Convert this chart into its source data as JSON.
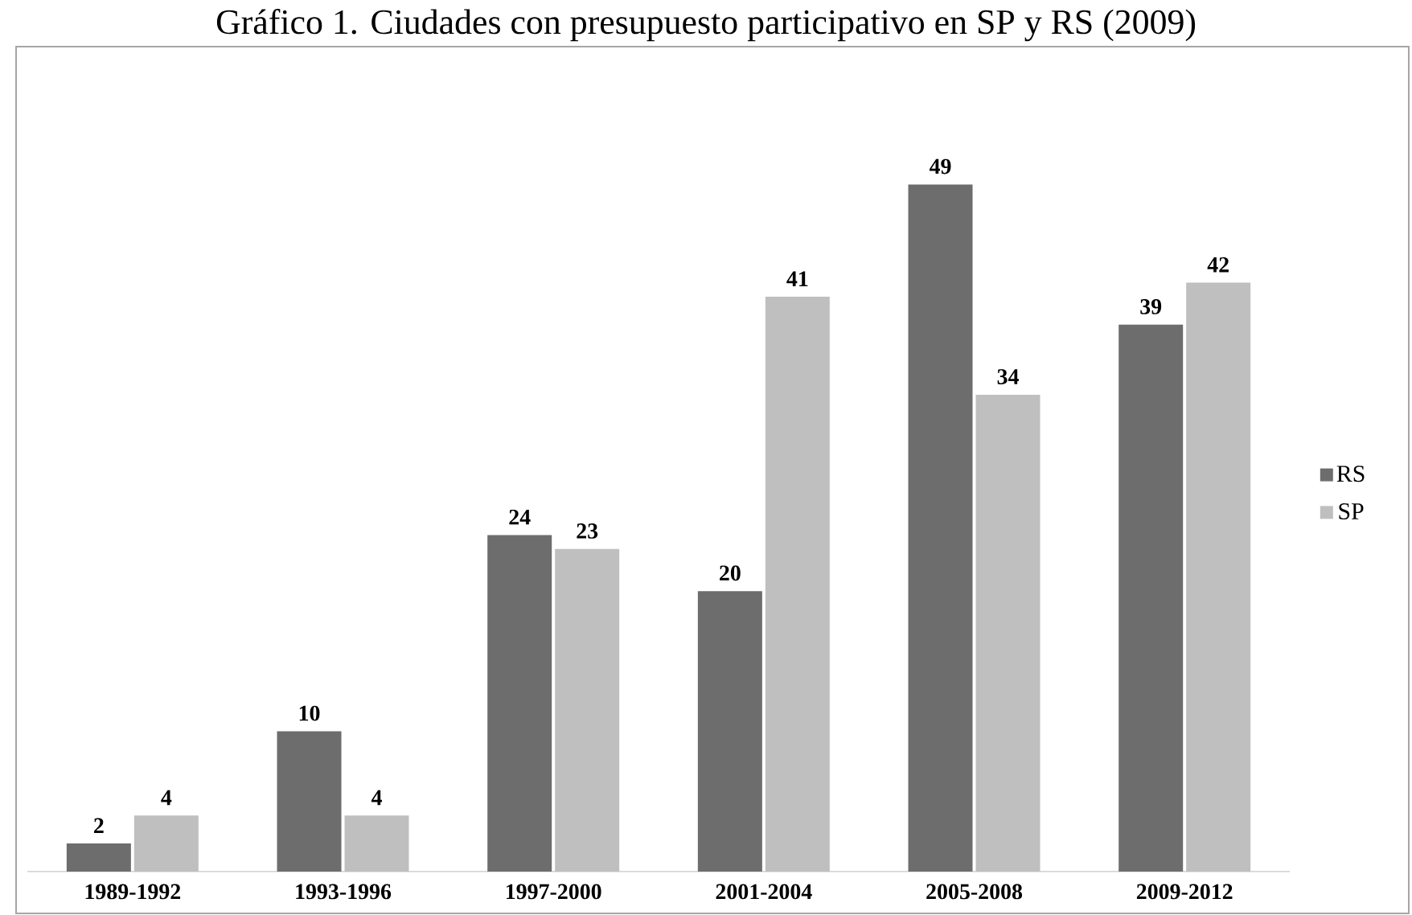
{
  "chart_data": {
    "type": "bar",
    "title": "Gráfico 1. Ciudades con presupuesto participativo en SP y RS (2009)",
    "categories": [
      "1989-1992",
      "1993-1996",
      "1997-2000",
      "2001-2004",
      "2005-2008",
      "2009-2012"
    ],
    "series": [
      {
        "name": "RS",
        "color": "#6d6d6d",
        "values": [
          2,
          10,
          24,
          20,
          49,
          39
        ]
      },
      {
        "name": "SP",
        "color": "#bfbfbf",
        "values": [
          4,
          4,
          23,
          41,
          34,
          42
        ]
      }
    ],
    "data_labels": true,
    "legend": "right"
  }
}
